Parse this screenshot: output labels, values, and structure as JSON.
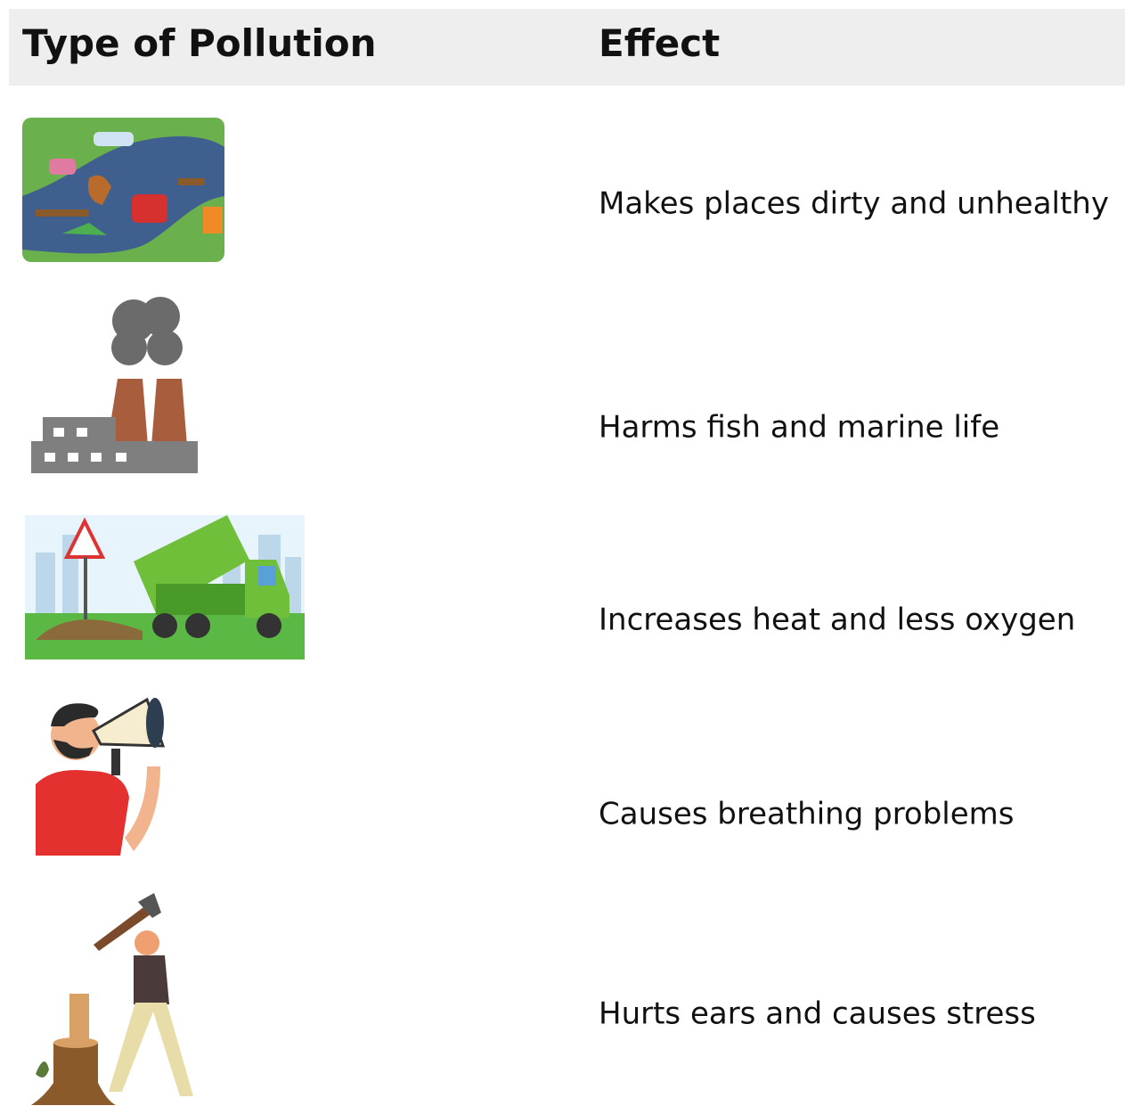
{
  "table": {
    "headers": [
      "Type of Pollution",
      "Effect"
    ],
    "effects": [
      "Makes places dirty and unhealthy",
      "Harms fish and marine life",
      "Increases heat and less oxygen",
      "Causes breathing problems",
      "Hurts ears and causes stress"
    ]
  }
}
